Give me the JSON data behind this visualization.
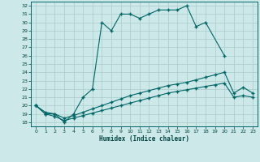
{
  "title": "",
  "xlabel": "Humidex (Indice chaleur)",
  "bg_color": "#cce8e8",
  "grid_color": "#aacccc",
  "line_color": "#006666",
  "ylim": [
    17.5,
    32.5
  ],
  "xlim": [
    -0.5,
    23.5
  ],
  "yticks": [
    18,
    19,
    20,
    21,
    22,
    23,
    24,
    25,
    26,
    27,
    28,
    29,
    30,
    31,
    32
  ],
  "xticks": [
    0,
    1,
    2,
    3,
    4,
    5,
    6,
    7,
    8,
    9,
    10,
    11,
    12,
    13,
    14,
    15,
    16,
    17,
    18,
    19,
    20,
    21,
    22,
    23
  ],
  "line1_x": [
    0,
    1,
    2,
    3,
    4,
    5,
    6,
    7,
    8,
    9,
    10,
    11,
    12,
    13,
    14,
    15,
    16,
    17,
    18,
    20
  ],
  "line1_y": [
    20,
    19,
    19,
    18,
    19,
    21,
    22,
    30,
    29,
    31,
    31,
    30.5,
    31,
    31.5,
    31.5,
    31.5,
    32,
    29.5,
    30,
    26
  ],
  "line2_x": [
    0,
    1,
    2,
    3,
    4,
    5,
    6,
    7,
    8,
    9,
    10,
    11,
    12,
    13,
    14,
    15,
    16,
    17,
    18,
    19,
    20,
    21,
    22,
    23
  ],
  "line2_y": [
    20,
    19.2,
    19.0,
    18.5,
    18.8,
    19.2,
    19.6,
    20.0,
    20.4,
    20.8,
    21.2,
    21.5,
    21.8,
    22.1,
    22.4,
    22.6,
    22.8,
    23.1,
    23.4,
    23.7,
    24.0,
    21.5,
    22.2,
    21.5
  ],
  "line3_x": [
    0,
    1,
    2,
    3,
    4,
    5,
    6,
    7,
    8,
    9,
    10,
    11,
    12,
    13,
    14,
    15,
    16,
    17,
    18,
    19,
    20,
    21,
    22,
    23
  ],
  "line3_y": [
    20,
    19.0,
    18.7,
    18.2,
    18.5,
    18.8,
    19.1,
    19.4,
    19.7,
    20.0,
    20.3,
    20.6,
    20.9,
    21.2,
    21.5,
    21.7,
    21.9,
    22.1,
    22.3,
    22.5,
    22.7,
    21.0,
    21.2,
    21.0
  ]
}
